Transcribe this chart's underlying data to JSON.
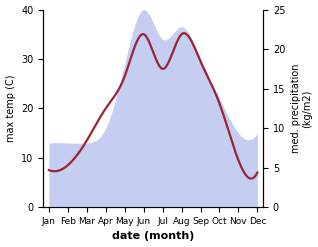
{
  "months": [
    "Jan",
    "Feb",
    "Mar",
    "Apr",
    "May",
    "Jun",
    "Jul",
    "Aug",
    "Sep",
    "Oct",
    "Nov",
    "Dec"
  ],
  "month_positions": [
    0,
    1,
    2,
    3,
    4,
    5,
    6,
    7,
    8,
    9,
    10,
    11
  ],
  "temp": [
    7.5,
    8.5,
    13.5,
    20.0,
    26.5,
    35.0,
    28.0,
    35.0,
    29.5,
    21.0,
    9.5,
    7.0
  ],
  "precip_left_scale": [
    13.0,
    13.0,
    13.0,
    16.0,
    29.0,
    40.0,
    34.0,
    36.5,
    30.0,
    22.0,
    15.0,
    15.0
  ],
  "temp_color": "#9b2335",
  "precip_fill_color": "#c5cdf0",
  "precip_edge_color": "#aab4e8",
  "temp_ylim": [
    0,
    40
  ],
  "precip_ylim": [
    0,
    25
  ],
  "temp_yticks": [
    0,
    10,
    20,
    30,
    40
  ],
  "precip_yticks": [
    0,
    5,
    10,
    15,
    20,
    25
  ],
  "xlabel": "date (month)",
  "ylabel_left": "max temp (C)",
  "ylabel_right": "med. precipitation\n(kg/m2)",
  "line_width": 1.6,
  "smooth_points": 400
}
